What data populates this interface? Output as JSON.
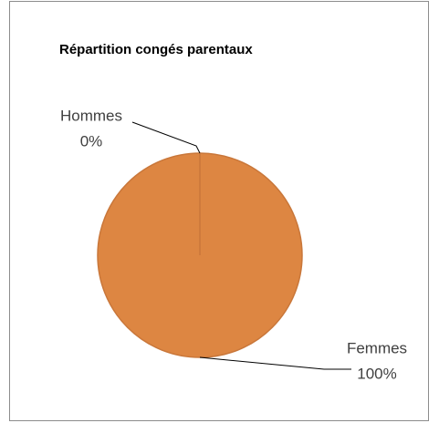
{
  "chart_data": {
    "type": "pie",
    "title": "Répartition congés parentaux",
    "categories": [
      "Hommes",
      "Femmes"
    ],
    "values": [
      0,
      100
    ],
    "value_labels": [
      "0%",
      "100%"
    ],
    "colors": [
      "#5b9bd5",
      "#dd8642"
    ]
  }
}
